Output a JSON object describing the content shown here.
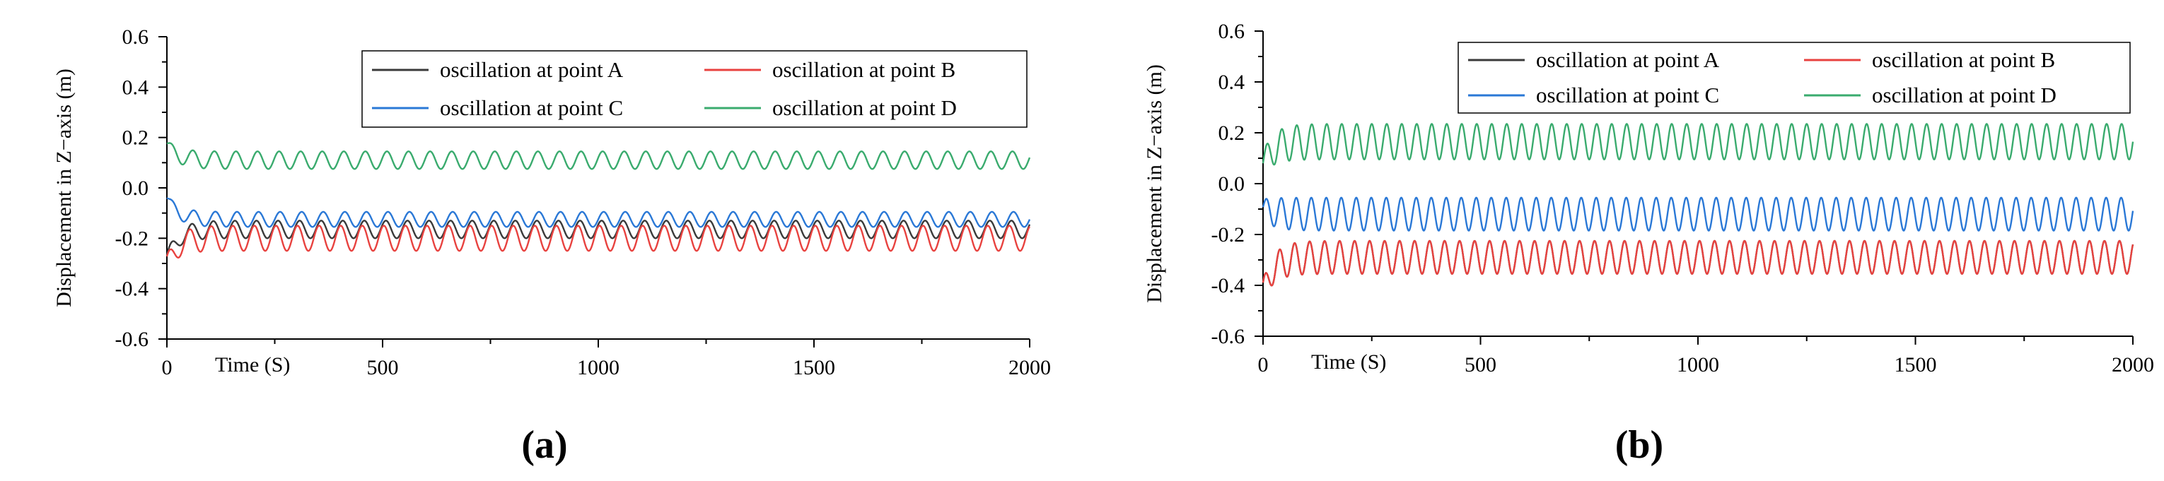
{
  "chart_data": [
    {
      "type": "line",
      "label": "(a)",
      "xlabel": "Time (S)",
      "ylabel": "Displacement in Z−axis (m)",
      "xlim": [
        0,
        2000
      ],
      "ylim": [
        -0.6,
        0.6
      ],
      "xticks": [
        0,
        500,
        1000,
        1500,
        2000
      ],
      "yticks": [
        -0.6,
        -0.4,
        -0.2,
        0.0,
        0.2,
        0.4,
        0.6
      ],
      "legend_position": "top-right",
      "cycles": 40,
      "series": [
        {
          "name": "oscillation at point A",
          "color": "#3a3a3a",
          "mean": -0.165,
          "amplitude": 0.035,
          "transient_start": -0.28,
          "phase": 0.6
        },
        {
          "name": "oscillation at point B",
          "color": "#e8423f",
          "mean": -0.2,
          "amplitude": 0.05,
          "transient_start": -0.3,
          "phase": 1.2
        },
        {
          "name": "oscillation at point C",
          "color": "#2a78d6",
          "mean": -0.125,
          "amplitude": 0.03,
          "transient_start": -0.04,
          "phase": 0.0
        },
        {
          "name": "oscillation at point D",
          "color": "#3aab6e",
          "mean": 0.11,
          "amplitude": 0.035,
          "transient_start": 0.17,
          "phase": 0.3
        }
      ]
    },
    {
      "type": "line",
      "label": "(b)",
      "xlabel": "Time (S)",
      "ylabel": "Displacement in Z−axis (m)",
      "xlim": [
        0,
        2000
      ],
      "ylim": [
        -0.6,
        0.6
      ],
      "xticks": [
        0,
        500,
        1000,
        1500,
        2000
      ],
      "yticks": [
        -0.6,
        -0.4,
        -0.2,
        0.0,
        0.2,
        0.4,
        0.6
      ],
      "legend_position": "top-right",
      "cycles": 58,
      "series": [
        {
          "name": "oscillation at point A",
          "color": "#3a3a3a",
          "mean": -0.29,
          "amplitude": 0.065,
          "transient_start": -0.42,
          "phase": 0.9
        },
        {
          "name": "oscillation at point B",
          "color": "#e8423f",
          "mean": -0.29,
          "amplitude": 0.065,
          "transient_start": -0.42,
          "phase": 0.9
        },
        {
          "name": "oscillation at point C",
          "color": "#2a78d6",
          "mean": -0.12,
          "amplitude": 0.065,
          "transient_start": -0.1,
          "phase": 0.2
        },
        {
          "name": "oscillation at point D",
          "color": "#3aab6e",
          "mean": 0.165,
          "amplitude": 0.07,
          "transient_start": 0.08,
          "phase": 0.0
        }
      ]
    }
  ]
}
